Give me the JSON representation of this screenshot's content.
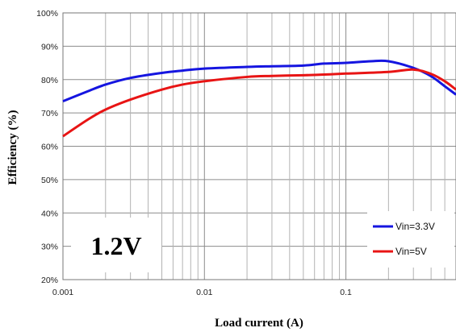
{
  "chart_data": {
    "type": "line",
    "xlabel": "Load current (A)",
    "ylabel": "Efficiency  (%)",
    "x_scale": "log",
    "xlim": [
      0.001,
      0.6
    ],
    "ylim": [
      20,
      100
    ],
    "x_ticks": [
      {
        "value": 0.001,
        "label": "0.001"
      },
      {
        "value": 0.01,
        "label": "0.01"
      },
      {
        "value": 0.1,
        "label": "0.1"
      }
    ],
    "y_ticks": [
      {
        "value": 20,
        "label": "20%"
      },
      {
        "value": 30,
        "label": "30%"
      },
      {
        "value": 40,
        "label": "40%"
      },
      {
        "value": 50,
        "label": "50%"
      },
      {
        "value": 60,
        "label": "60%"
      },
      {
        "value": 70,
        "label": "70%"
      },
      {
        "value": 80,
        "label": "80%"
      },
      {
        "value": 90,
        "label": "90%"
      },
      {
        "value": 100,
        "label": "100%"
      }
    ],
    "grid": true,
    "legend_position": "bottom-right",
    "annotation": "1.2V",
    "series": [
      {
        "name": "Vin=3.3V",
        "color": "#1515e0",
        "points": [
          [
            0.001,
            73.5
          ],
          [
            0.0015,
            76.5
          ],
          [
            0.002,
            78.5
          ],
          [
            0.003,
            80.5
          ],
          [
            0.005,
            82.0
          ],
          [
            0.007,
            82.7
          ],
          [
            0.01,
            83.3
          ],
          [
            0.02,
            83.8
          ],
          [
            0.03,
            84.0
          ],
          [
            0.05,
            84.2
          ],
          [
            0.07,
            84.8
          ],
          [
            0.1,
            85.0
          ],
          [
            0.15,
            85.5
          ],
          [
            0.2,
            85.5
          ],
          [
            0.3,
            83.5
          ],
          [
            0.4,
            81.0
          ],
          [
            0.5,
            78.0
          ],
          [
            0.6,
            75.5
          ]
        ]
      },
      {
        "name": "Vin=5V",
        "color": "#e81414",
        "points": [
          [
            0.001,
            63.0
          ],
          [
            0.0015,
            68.0
          ],
          [
            0.002,
            71.0
          ],
          [
            0.003,
            74.0
          ],
          [
            0.005,
            77.0
          ],
          [
            0.007,
            78.5
          ],
          [
            0.01,
            79.5
          ],
          [
            0.02,
            80.8
          ],
          [
            0.03,
            81.1
          ],
          [
            0.05,
            81.3
          ],
          [
            0.07,
            81.5
          ],
          [
            0.1,
            81.8
          ],
          [
            0.2,
            82.3
          ],
          [
            0.3,
            83.0
          ],
          [
            0.4,
            81.7
          ],
          [
            0.5,
            79.5
          ],
          [
            0.6,
            77.0
          ]
        ]
      }
    ]
  }
}
